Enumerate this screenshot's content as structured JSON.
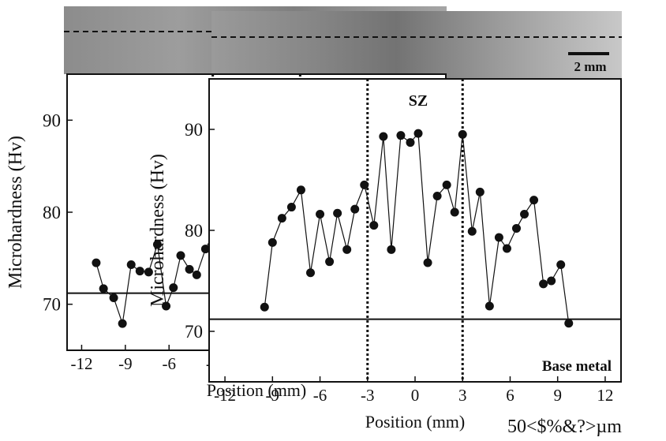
{
  "figure": {
    "scale_bar_label": "2 mm",
    "bottom_caption": "50<$%&?>µm"
  },
  "chart_data": [
    {
      "type": "scatter",
      "title": "",
      "xlabel": "Position (mm)",
      "ylabel": "Microhardness (Hv)",
      "xlim": [
        -13,
        13
      ],
      "ylim": [
        65,
        95
      ],
      "xticks": [
        -12,
        -9,
        -6,
        -3,
        0,
        3,
        6,
        9,
        12
      ],
      "yticks": [
        70,
        80,
        90
      ],
      "zone_lines_x": [
        -3,
        3
      ],
      "zone_label": "SZ",
      "base_metal_label": "Base metal",
      "base_metal_hv": 71.2,
      "series": [
        {
          "x": [
            -11,
            -10.5,
            -9.8,
            -9.2,
            -8.6,
            -8,
            -7.4,
            -6.8,
            -6.2,
            -5.7,
            -5.2,
            -4.6,
            -4.1,
            -3.5,
            -3,
            -2.4,
            -1.8,
            -1.2,
            -0.7,
            -0.1,
            0.5,
            1,
            1.6,
            2.2,
            2.7,
            3.3,
            3.9,
            4.4,
            5,
            5.6,
            6.1,
            6.7,
            7.2,
            7.8,
            8.3,
            8.9,
            9.5,
            10,
            10.6,
            11.2,
            11.7
          ],
          "y": [
            74.5,
            71.7,
            70.7,
            67.9,
            74.3,
            73.6,
            73.5,
            76.5,
            69.8,
            71.8,
            75.3,
            73.8,
            73.2,
            76,
            77.5,
            75.5,
            74.6,
            72.9,
            69.1,
            70.8,
            69.1,
            71.6,
            70.5,
            70.4,
            74.2,
            69,
            70.2,
            72.8,
            72.5,
            70.4,
            70.1,
            72.7,
            70.5,
            74.6,
            75.1,
            72.4,
            74.6,
            75.8,
            73.8,
            75.5,
            79.2
          ]
        }
      ]
    },
    {
      "type": "scatter",
      "title": "",
      "xlabel": "Position (mm)",
      "ylabel": "Microhardness (Hv)",
      "xlim": [
        -13,
        13
      ],
      "ylim": [
        65,
        95
      ],
      "xticks": [
        -12,
        -9,
        -6,
        -3,
        0,
        3,
        6,
        9,
        12
      ],
      "yticks": [
        70,
        80,
        90
      ],
      "zone_lines_x": [
        -3,
        3
      ],
      "zone_label": "SZ",
      "base_metal_label": "Base metal",
      "base_metal_hv": 71.2,
      "series": [
        {
          "x": [
            -9.5,
            -9,
            -8.4,
            -7.8,
            -7.2,
            -6.6,
            -6,
            -5.4,
            -4.9,
            -4.3,
            -3.8,
            -3.2,
            -2.6,
            -2,
            -1.5,
            -0.9,
            -0.3,
            0.2,
            0.8,
            1.4,
            2,
            2.5,
            3,
            3.6,
            4.1,
            4.7,
            5.3,
            5.8,
            6.4,
            6.9,
            7.5,
            8.1,
            8.6,
            9.2,
            9.7
          ],
          "y": [
            72.4,
            78.8,
            81.2,
            82.3,
            84,
            75.8,
            81.6,
            76.9,
            81.7,
            78.1,
            82.1,
            84.5,
            80.5,
            89.3,
            78.1,
            89.4,
            88.7,
            89.6,
            76.8,
            83.4,
            84.5,
            81.8,
            89.5,
            79.9,
            83.8,
            72.5,
            79.3,
            78.2,
            80.2,
            81.6,
            83,
            74.7,
            75,
            76.6,
            70.8
          ]
        }
      ]
    }
  ]
}
